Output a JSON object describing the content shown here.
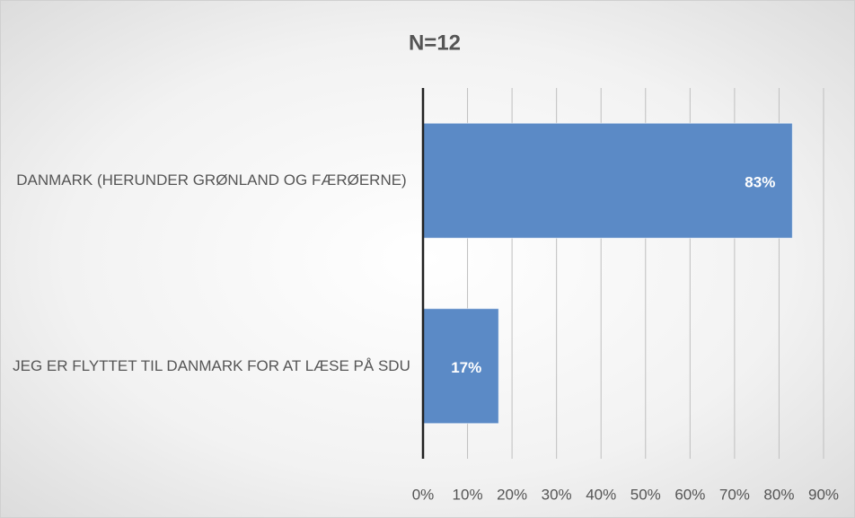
{
  "chart_data": {
    "type": "barh",
    "title": "N=12",
    "categories": [
      "DANMARK (HERUNDER GRØNLAND OG FÆRØERNE)",
      "JEG ER FLYTTET TIL DANMARK FOR AT LÆSE PÅ SDU"
    ],
    "values": [
      83,
      17
    ],
    "value_labels": [
      "83%",
      "17%"
    ],
    "color": "#5b8ac6",
    "xlim": [
      0,
      90
    ],
    "xticks": [
      {
        "value": 0,
        "label": "0%"
      },
      {
        "value": 10,
        "label": "10%"
      },
      {
        "value": 20,
        "label": "20%"
      },
      {
        "value": 30,
        "label": "30%"
      },
      {
        "value": 40,
        "label": "40%"
      },
      {
        "value": 50,
        "label": "50%"
      },
      {
        "value": 60,
        "label": "60%"
      },
      {
        "value": 70,
        "label": "70%"
      },
      {
        "value": 80,
        "label": "80%"
      },
      {
        "value": 90,
        "label": "90%"
      }
    ],
    "grid": true
  }
}
